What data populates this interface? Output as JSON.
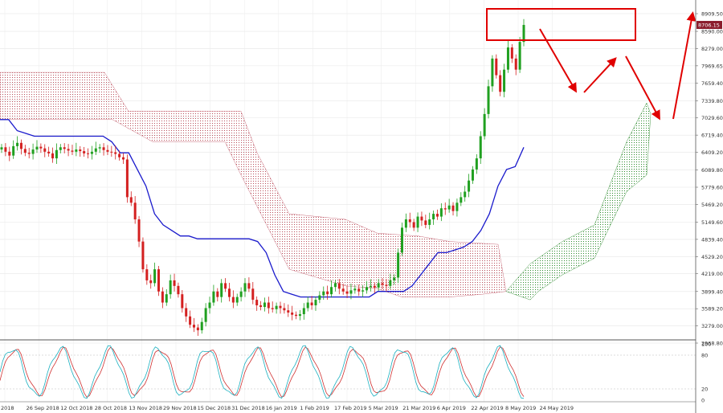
{
  "chart_data": [
    {
      "type": "candlestick",
      "price_axis": {
        "ylim": [
          2968.8,
          8909.5
        ],
        "ticks": [
          "8909.50",
          "8590.00",
          "8279.00",
          "7969.65",
          "7659.40",
          "7339.80",
          "7029.60",
          "6719.40",
          "6409.20",
          "6089.80",
          "5779.60",
          "5469.20",
          "5149.60",
          "4839.40",
          "4529.20",
          "4219.00",
          "3899.40",
          "3589.20",
          "3279.00",
          "2968.80"
        ],
        "current_price_label": "8706.15",
        "current_price": 8706.15
      },
      "x_tick_labels": [
        "2018",
        "26 Sep 2018",
        "12 Oct 2018",
        "28 Oct 2018",
        "13 Nov 2018",
        "29 Nov 2018",
        "15 Dec 2018",
        "31 Dec 2018",
        "16 Jan 2019",
        "1 Feb 2019",
        "17 Feb 2019",
        "5 Mar 2019",
        "21 Mar 2019",
        "6 Apr 2019",
        "22 Apr 2019",
        "8 May 2019",
        "24 May 2019"
      ],
      "candle_closes": [
        6500,
        6420,
        6350,
        6520,
        6580,
        6470,
        6400,
        6380,
        6460,
        6510,
        6480,
        6420,
        6390,
        6300,
        6450,
        6500,
        6470,
        6440,
        6420,
        6460,
        6430,
        6390,
        6380,
        6420,
        6480,
        6500,
        6450,
        6420,
        6410,
        6380,
        6320,
        6280,
        5600,
        5500,
        5200,
        4800,
        4300,
        4100,
        4050,
        4300,
        3900,
        3700,
        3850,
        4100,
        4000,
        3850,
        3600,
        3450,
        3300,
        3250,
        3200,
        3350,
        3600,
        3700,
        3900,
        3800,
        4050,
        3950,
        3800,
        3700,
        3800,
        3900,
        4050,
        3950,
        3750,
        3650,
        3620,
        3700,
        3600,
        3580,
        3640,
        3600,
        3560,
        3520,
        3480,
        3460,
        3490,
        3600,
        3700,
        3650,
        3750,
        3830,
        3900,
        3850,
        3980,
        4050,
        3950,
        3900,
        3860,
        3920,
        3950,
        3900,
        3920,
        3980,
        4000,
        3970,
        4050,
        4020,
        4000,
        4100,
        4150,
        4600,
        5050,
        5200,
        5150,
        5050,
        5250,
        5180,
        5100,
        5200,
        5300,
        5250,
        5400,
        5380,
        5450,
        5350,
        5500,
        5600,
        5700,
        5900,
        6100,
        6300,
        6700,
        7100,
        7600,
        8100,
        7800,
        7500,
        7900,
        8300,
        8100,
        7900,
        8400,
        8706.15
      ],
      "tenkan_sen": [
        7000,
        7000,
        6800,
        6750,
        6700,
        6700,
        6700,
        6700,
        6700,
        6700,
        6700,
        6700,
        6700,
        6600,
        6400,
        6400,
        6100,
        5800,
        5300,
        5100,
        5000,
        4900,
        4900,
        4850,
        4850,
        4850,
        4850,
        4850,
        4850,
        4850,
        4800,
        4600,
        4200,
        3900,
        3850,
        3800,
        3800,
        3800,
        3800,
        3800,
        3800,
        3800,
        3800,
        3800,
        3900,
        3900,
        3900,
        3900,
        4000,
        4200,
        4400,
        4600,
        4600,
        4650,
        4700,
        4800,
        5000,
        5300,
        5800,
        6100,
        6150,
        6500
      ],
      "ichimoku_cloud": [
        {
          "name": "bearish_kumo",
          "color": "#b23a48"
        },
        {
          "name": "bullish_kumo",
          "color": "#2e8b2e"
        }
      ],
      "stochastic": {
        "ylim": [
          0,
          100
        ],
        "ticks": [
          "100",
          "80",
          "20",
          "0"
        ],
        "levels": [
          80,
          20
        ],
        "k_line_color": "#1ab0c0",
        "d_line_color": "#d03030"
      },
      "annotations": [
        {
          "type": "rectangle",
          "color": "#e00000"
        },
        {
          "type": "arrow_path",
          "color": "#e00000"
        }
      ]
    }
  ]
}
